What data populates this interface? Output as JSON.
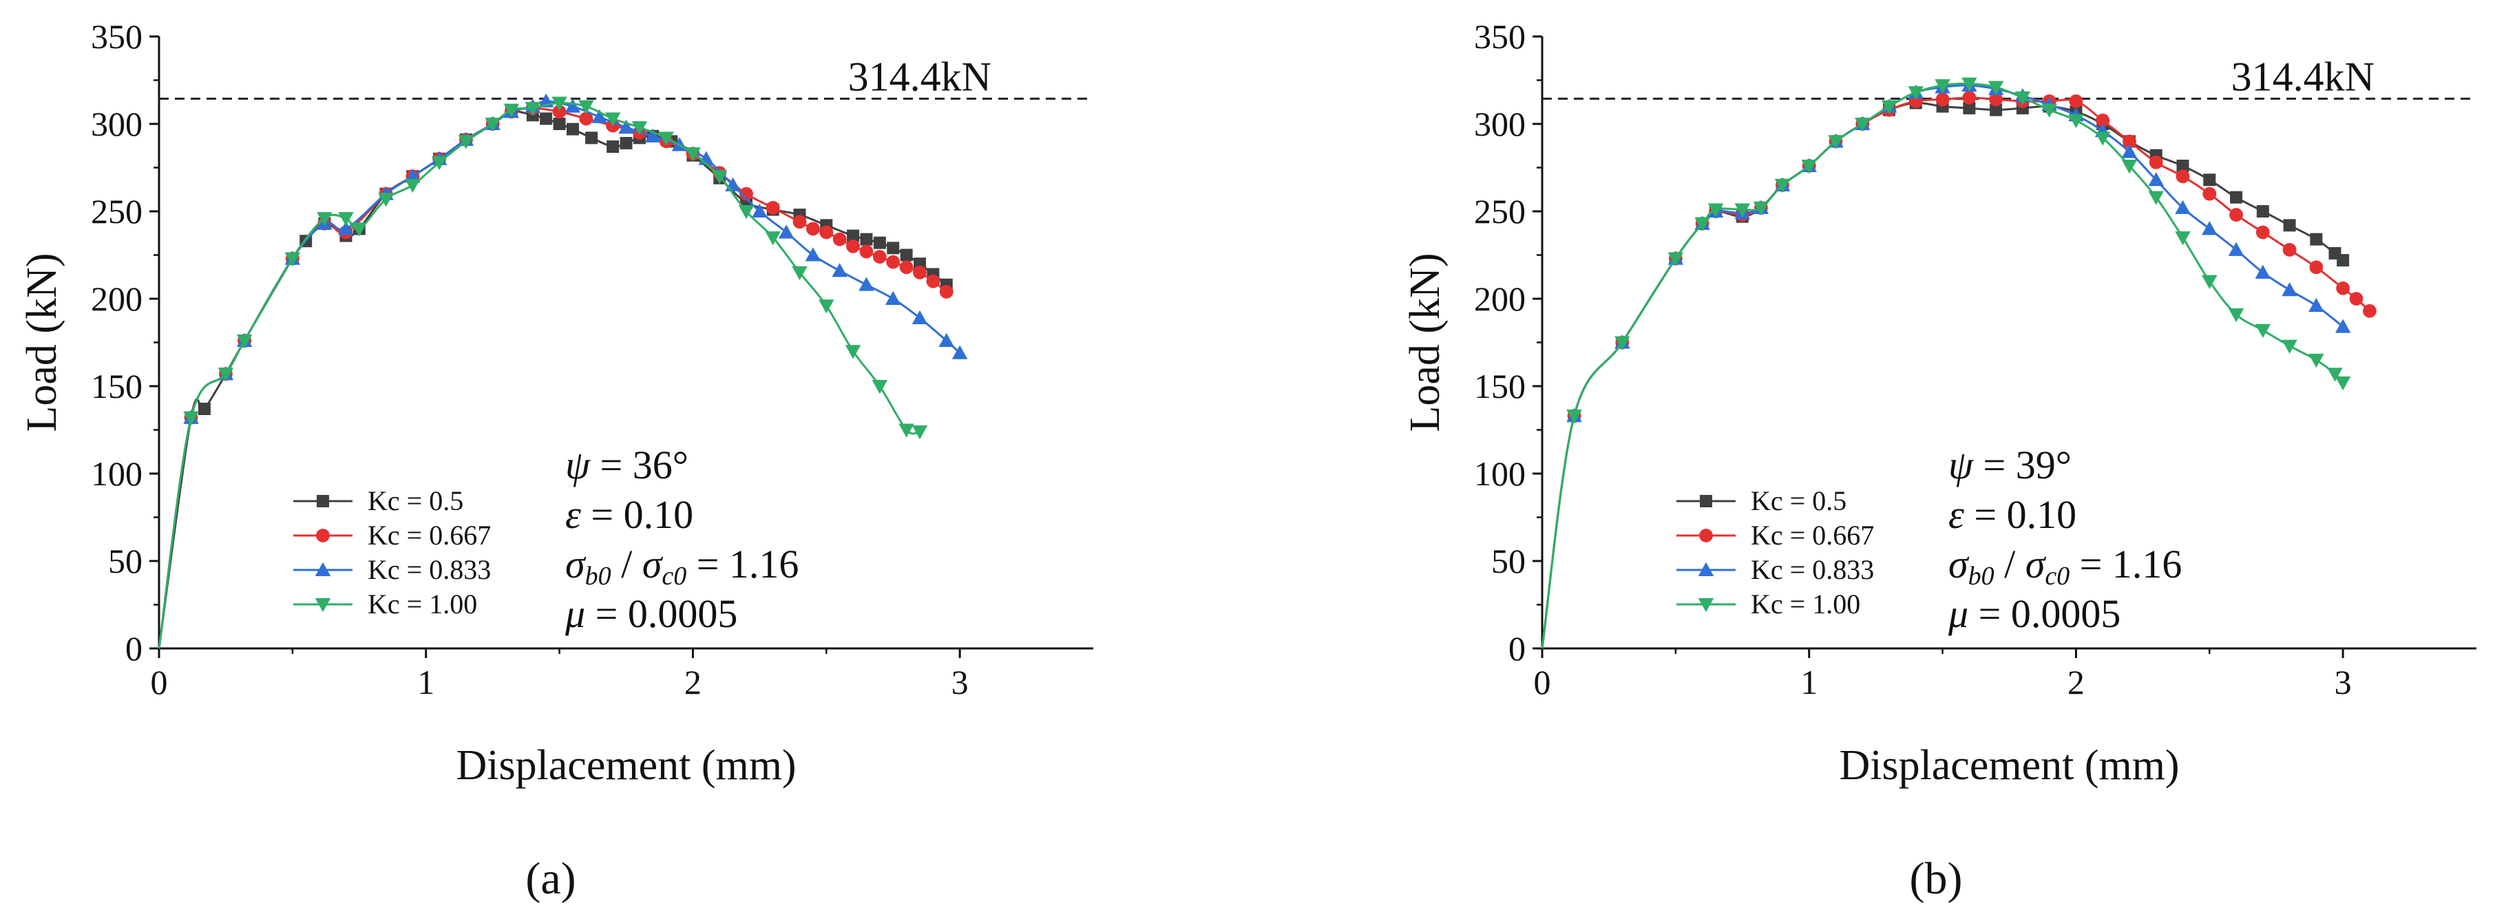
{
  "captions": [
    "(a)",
    "(b)"
  ],
  "chart_data": [
    {
      "type": "line",
      "panel": "a",
      "xlabel": "Displacement (mm)",
      "ylabel": "Load (kN)",
      "xlim": [
        0,
        3.5
      ],
      "ylim": [
        0,
        350
      ],
      "xticks": [
        0,
        1,
        2,
        3
      ],
      "yticks": [
        0,
        50,
        100,
        150,
        200,
        250,
        300,
        350
      ],
      "reference_line": {
        "value": 314.4,
        "label": "314.4kN"
      },
      "params": {
        "psi": "36°",
        "epsilon": "0.10",
        "sigma_ratio": "1.16",
        "mu": "0.0005"
      },
      "legend_position": "bottom-center",
      "series": [
        {
          "name": "Kc = 0.5",
          "color": "#404040",
          "marker": "square",
          "x": [
            0,
            0.12,
            0.17,
            0.25,
            0.32,
            0.5,
            0.55,
            0.62,
            0.7,
            0.75,
            0.85,
            0.95,
            1.05,
            1.15,
            1.25,
            1.32,
            1.4,
            1.45,
            1.5,
            1.55,
            1.62,
            1.7,
            1.75,
            1.8,
            1.85,
            1.92,
            2.0,
            2.1,
            2.2,
            2.3,
            2.4,
            2.5,
            2.6,
            2.65,
            2.7,
            2.75,
            2.8,
            2.85,
            2.9,
            2.95
          ],
          "y": [
            0,
            132,
            137,
            157,
            176,
            223,
            233,
            243,
            236,
            240,
            260,
            270,
            280,
            291,
            300,
            307,
            305,
            303,
            300,
            297,
            292,
            287,
            289,
            292,
            293,
            290,
            282,
            269,
            255,
            251,
            248,
            242,
            236,
            234,
            232,
            229,
            225,
            220,
            214,
            208
          ]
        },
        {
          "name": "Kc = 0.667",
          "color": "#e53030",
          "marker": "circle",
          "x": [
            0,
            0.12,
            0.25,
            0.32,
            0.5,
            0.62,
            0.7,
            0.85,
            0.95,
            1.05,
            1.15,
            1.25,
            1.32,
            1.4,
            1.5,
            1.6,
            1.7,
            1.8,
            1.9,
            2.0,
            2.1,
            2.2,
            2.3,
            2.4,
            2.45,
            2.5,
            2.55,
            2.6,
            2.65,
            2.7,
            2.75,
            2.8,
            2.85,
            2.9,
            2.95
          ],
          "y": [
            0,
            132,
            157,
            176,
            223,
            243,
            238,
            260,
            270,
            280,
            291,
            300,
            307,
            309,
            307,
            303,
            299,
            295,
            290,
            283,
            272,
            260,
            252,
            244,
            240,
            238,
            234,
            230,
            227,
            224,
            221,
            218,
            215,
            210,
            204
          ]
        },
        {
          "name": "Kc = 0.833",
          "color": "#2f6fd8",
          "marker": "triangle-up",
          "x": [
            0,
            0.12,
            0.25,
            0.32,
            0.5,
            0.62,
            0.7,
            0.85,
            0.95,
            1.05,
            1.15,
            1.25,
            1.32,
            1.4,
            1.45,
            1.55,
            1.65,
            1.75,
            1.85,
            1.95,
            2.05,
            2.15,
            2.25,
            2.35,
            2.45,
            2.55,
            2.65,
            2.75,
            2.85,
            2.95,
            3.0
          ],
          "y": [
            0,
            132,
            157,
            176,
            223,
            243,
            240,
            260,
            270,
            280,
            291,
            300,
            307,
            310,
            313,
            310,
            304,
            298,
            293,
            288,
            280,
            265,
            250,
            238,
            225,
            216,
            208,
            200,
            189,
            176,
            169
          ]
        },
        {
          "name": "Kc = 1.00",
          "color": "#2fae66",
          "marker": "triangle-down",
          "x": [
            0,
            0.12,
            0.25,
            0.32,
            0.5,
            0.62,
            0.7,
            0.75,
            0.85,
            0.95,
            1.05,
            1.15,
            1.25,
            1.32,
            1.4,
            1.5,
            1.6,
            1.7,
            1.8,
            1.9,
            2.0,
            2.1,
            2.2,
            2.3,
            2.4,
            2.5,
            2.6,
            2.7,
            2.8,
            2.85
          ],
          "y": [
            0,
            132,
            157,
            176,
            223,
            246,
            246,
            240,
            257,
            265,
            278,
            290,
            300,
            308,
            309,
            312,
            310,
            303,
            298,
            292,
            283,
            270,
            250,
            235,
            215,
            196,
            170,
            150,
            125,
            124
          ]
        }
      ]
    },
    {
      "type": "line",
      "panel": "b",
      "xlabel": "Displacement (mm)",
      "ylabel": "Load (kN)",
      "xlim": [
        0,
        3.5
      ],
      "ylim": [
        0,
        350
      ],
      "xticks": [
        0,
        1,
        2,
        3
      ],
      "yticks": [
        0,
        50,
        100,
        150,
        200,
        250,
        300,
        350
      ],
      "reference_line": {
        "value": 314.4,
        "label": "314.4kN"
      },
      "params": {
        "psi": "39°",
        "epsilon": "0.10",
        "sigma_ratio": "1.16",
        "mu": "0.0005"
      },
      "legend_position": "bottom-center",
      "series": [
        {
          "name": "Kc = 0.5",
          "color": "#404040",
          "marker": "square",
          "x": [
            0,
            0.12,
            0.3,
            0.5,
            0.6,
            0.65,
            0.75,
            0.82,
            0.9,
            1.0,
            1.1,
            1.2,
            1.3,
            1.4,
            1.5,
            1.6,
            1.7,
            1.8,
            1.9,
            2.0,
            2.1,
            2.2,
            2.3,
            2.4,
            2.5,
            2.6,
            2.7,
            2.8,
            2.9,
            2.97,
            3.0
          ],
          "y": [
            0,
            133,
            175,
            223,
            243,
            250,
            247,
            252,
            265,
            276,
            290,
            300,
            308,
            312,
            310,
            309,
            308,
            309,
            310,
            307,
            300,
            290,
            282,
            276,
            268,
            258,
            250,
            242,
            234,
            226,
            222
          ]
        },
        {
          "name": "Kc = 0.667",
          "color": "#e53030",
          "marker": "circle",
          "x": [
            0,
            0.12,
            0.3,
            0.5,
            0.6,
            0.65,
            0.75,
            0.82,
            0.9,
            1.0,
            1.1,
            1.2,
            1.3,
            1.4,
            1.5,
            1.6,
            1.7,
            1.8,
            1.9,
            2.0,
            2.1,
            2.2,
            2.3,
            2.4,
            2.5,
            2.6,
            2.7,
            2.8,
            2.9,
            3.0,
            3.05,
            3.1
          ],
          "y": [
            0,
            133,
            175,
            223,
            243,
            250,
            248,
            252,
            265,
            276,
            290,
            300,
            308,
            313,
            314,
            315,
            314,
            313,
            313,
            313,
            302,
            290,
            278,
            270,
            260,
            248,
            238,
            228,
            218,
            206,
            200,
            193
          ]
        },
        {
          "name": "Kc = 0.833",
          "color": "#2f6fd8",
          "marker": "triangle-up",
          "x": [
            0,
            0.12,
            0.3,
            0.5,
            0.6,
            0.65,
            0.75,
            0.82,
            0.9,
            1.0,
            1.1,
            1.2,
            1.3,
            1.4,
            1.5,
            1.6,
            1.7,
            1.8,
            1.9,
            2.0,
            2.1,
            2.2,
            2.3,
            2.4,
            2.5,
            2.6,
            2.7,
            2.8,
            2.9,
            3.0
          ],
          "y": [
            0,
            133,
            175,
            223,
            243,
            250,
            249,
            252,
            265,
            276,
            290,
            300,
            310,
            318,
            321,
            322,
            320,
            316,
            311,
            305,
            296,
            284,
            268,
            252,
            240,
            228,
            215,
            205,
            196,
            184
          ]
        },
        {
          "name": "Kc = 1.00",
          "color": "#2fae66",
          "marker": "triangle-down",
          "x": [
            0,
            0.12,
            0.3,
            0.5,
            0.6,
            0.65,
            0.75,
            0.82,
            0.9,
            1.0,
            1.1,
            1.2,
            1.3,
            1.4,
            1.5,
            1.6,
            1.7,
            1.8,
            1.9,
            2.0,
            2.1,
            2.2,
            2.3,
            2.4,
            2.5,
            2.6,
            2.7,
            2.8,
            2.9,
            2.97,
            3.0
          ],
          "y": [
            0,
            133,
            175,
            223,
            243,
            251,
            251,
            252,
            265,
            276,
            290,
            300,
            310,
            318,
            322,
            323,
            321,
            315,
            308,
            302,
            292,
            276,
            258,
            235,
            210,
            191,
            182,
            173,
            165,
            157,
            152
          ]
        }
      ]
    }
  ]
}
